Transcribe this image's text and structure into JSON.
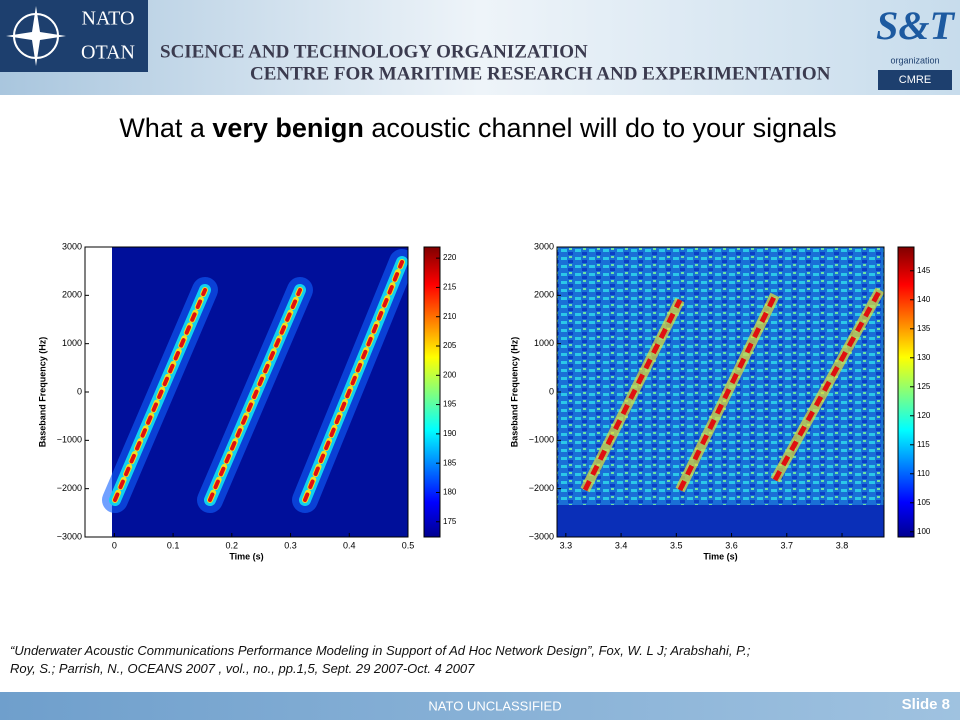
{
  "header": {
    "org_top": "NATO",
    "org_bottom": "OTAN",
    "line1": "SCIENCE AND TECHNOLOGY ORGANIZATION",
    "line2": "CENTRE FOR MARITIME RESEARCH AND EXPERIMENTATION",
    "logo": "S&T",
    "logo_sub": "organization",
    "logo_cmre": "CMRE"
  },
  "title": {
    "pre": "What a ",
    "bold": "very benign",
    "post": " acoustic channel will do to your signals"
  },
  "chart_data": [
    {
      "type": "heatmap",
      "xlabel": "Time (s)",
      "ylabel": "Baseband Frequency (Hz)",
      "xlim": [
        -0.05,
        0.5
      ],
      "xticks": [
        0,
        0.1,
        0.2,
        0.3,
        0.4,
        0.5
      ],
      "ylim": [
        -3000,
        3000
      ],
      "yticks": [
        3000,
        2000,
        1000,
        0,
        {
          "value": -1000,
          "label": "−1000"
        },
        {
          "value": -2000,
          "label": "−2000"
        },
        {
          "value": -3000,
          "label": "−3000"
        }
      ],
      "clim": [
        172.4,
        221.9
      ],
      "cticks": [
        175,
        180,
        185,
        190,
        195,
        200,
        205,
        210,
        215,
        220
      ]
    },
    {
      "type": "heatmap",
      "xlabel": "Time (s)",
      "ylabel": "Baseband Frequency (Hz)",
      "xlim": [
        3.284,
        3.876
      ],
      "xticks": [
        3.3,
        3.4,
        3.5,
        3.6,
        3.7,
        3.8
      ],
      "ylim": [
        -3000,
        3000
      ],
      "yticks": [
        3000,
        2000,
        1000,
        0,
        {
          "value": -1000,
          "label": "−1000"
        },
        {
          "value": -2000,
          "label": "−2000"
        },
        {
          "value": -3000,
          "label": "−3000"
        }
      ],
      "clim": [
        99.1,
        149.1
      ],
      "cticks": [
        100,
        105,
        110,
        115,
        120,
        125,
        130,
        135,
        140,
        145
      ]
    }
  ],
  "citation": [
    "“Underwater Acoustic Communications Performance Modeling in Support of Ad Hoc Network Design”, Fox, W. L J; Arabshahi, P.;",
    "Roy, S.; Parrish, N.,  OCEANS 2007 , vol., no., pp.1,5, Sept. 29 2007-Oct. 4 2007"
  ],
  "footer": {
    "classification": "NATO UNCLASSIFIED",
    "slide": "Slide 8"
  }
}
